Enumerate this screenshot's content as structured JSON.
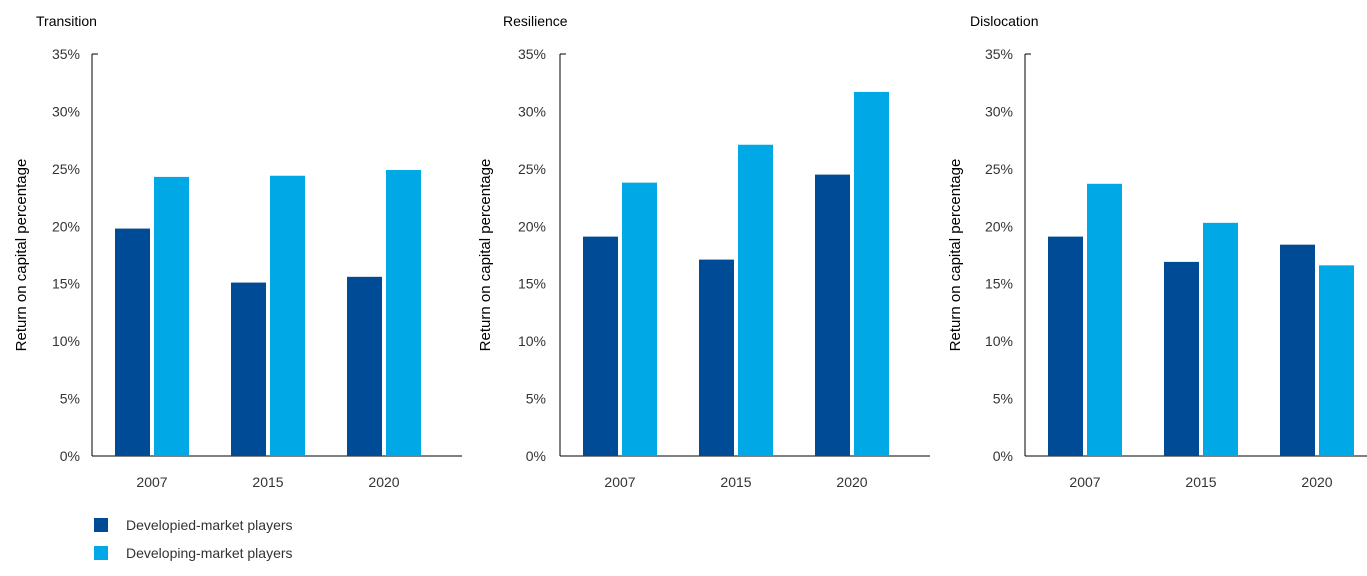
{
  "chart_data": [
    {
      "type": "bar",
      "title": "Transition",
      "ylabel": "Return on capital percentage",
      "categories": [
        "2007",
        "2015",
        "2020"
      ],
      "ylim": [
        0,
        35
      ],
      "yticks": [
        "0%",
        "5%",
        "10%",
        "15%",
        "20%",
        "25%",
        "30%",
        "35%"
      ],
      "series": [
        {
          "name": "Developied-market players",
          "values": [
            19.8,
            15.1,
            15.6
          ]
        },
        {
          "name": "Developing-market players",
          "values": [
            24.3,
            24.4,
            24.9
          ]
        }
      ]
    },
    {
      "type": "bar",
      "title": "Resilience",
      "ylabel": "Return on capital percentage",
      "categories": [
        "2007",
        "2015",
        "2020"
      ],
      "ylim": [
        0,
        35
      ],
      "yticks": [
        "0%",
        "5%",
        "10%",
        "15%",
        "20%",
        "25%",
        "30%",
        "35%"
      ],
      "series": [
        {
          "name": "Developied-market players",
          "values": [
            19.1,
            17.1,
            24.5
          ]
        },
        {
          "name": "Developing-market players",
          "values": [
            23.8,
            27.1,
            31.7
          ]
        }
      ]
    },
    {
      "type": "bar",
      "title": "Dislocation",
      "ylabel": "Return on capital percentage",
      "categories": [
        "2007",
        "2015",
        "2020"
      ],
      "ylim": [
        0,
        35
      ],
      "yticks": [
        "0%",
        "5%",
        "10%",
        "15%",
        "20%",
        "25%",
        "30%",
        "35%"
      ],
      "series": [
        {
          "name": "Developied-market players",
          "values": [
            19.1,
            16.9,
            18.4
          ]
        },
        {
          "name": "Developing-market players",
          "values": [
            23.7,
            20.3,
            16.6
          ]
        }
      ]
    }
  ],
  "legend": {
    "placement": "bottom-left",
    "items": [
      {
        "label": "Developied-market players",
        "color": "#004b96"
      },
      {
        "label": "Developing-market players",
        "color": "#00a9e6"
      }
    ]
  },
  "colors": {
    "developed": "#004b96",
    "developing": "#00a9e6"
  }
}
